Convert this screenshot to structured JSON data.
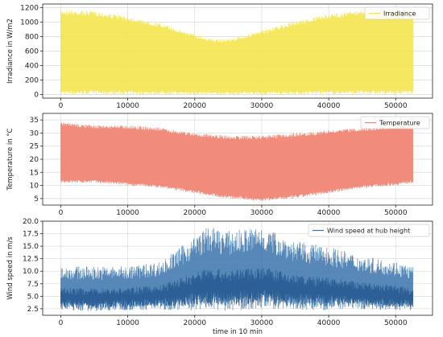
{
  "chart_data": [
    {
      "type": "line",
      "ylabel": "Irradiance in W/m2",
      "xlabel": "",
      "xlim": [
        -2700,
        55500
      ],
      "ylim": [
        -50,
        1250
      ],
      "xticks": [
        0,
        10000,
        20000,
        30000,
        40000,
        50000
      ],
      "xtick_labels": [
        "0",
        "10000",
        "20000",
        "30000",
        "40000",
        "50000"
      ],
      "yticks": [
        0,
        200,
        400,
        600,
        800,
        1000,
        1200
      ],
      "ytick_labels": [
        "0",
        "200",
        "400",
        "600",
        "800",
        "1000",
        "1200"
      ],
      "grid": true,
      "legend_position": "top-right",
      "color": "#f5e44f",
      "series": [
        {
          "name": "Irradiance",
          "x_range": [
            0,
            52560
          ],
          "envelope_x": [
            0,
            5000,
            10000,
            15000,
            20000,
            23000,
            26000,
            30000,
            35000,
            40000,
            45000,
            50000,
            52560
          ],
          "envelope_max": [
            1170,
            1150,
            1080,
            980,
            830,
            760,
            780,
            880,
            1010,
            1110,
            1170,
            1190,
            1160
          ],
          "envelope_min": [
            0,
            0,
            0,
            0,
            0,
            0,
            0,
            0,
            0,
            0,
            0,
            0,
            0
          ]
        }
      ]
    },
    {
      "type": "line",
      "ylabel": "Temperature in °C",
      "xlabel": "",
      "xlim": [
        -2700,
        55500
      ],
      "ylim": [
        2.5,
        37.5
      ],
      "xticks": [
        0,
        10000,
        20000,
        30000,
        40000,
        50000
      ],
      "xtick_labels": [
        "0",
        "10000",
        "20000",
        "30000",
        "40000",
        "50000"
      ],
      "yticks": [
        5,
        10,
        15,
        20,
        25,
        30,
        35
      ],
      "ytick_labels": [
        "5",
        "10",
        "15",
        "20",
        "25",
        "30",
        "35"
      ],
      "grid": true,
      "legend_position": "top-right",
      "color": "#f0806f",
      "series": [
        {
          "name": "Temperature",
          "x_range": [
            0,
            52560
          ],
          "envelope_x": [
            0,
            5000,
            10000,
            15000,
            20000,
            25000,
            30000,
            35000,
            40000,
            45000,
            50000,
            52560
          ],
          "envelope_max": [
            34,
            33,
            33,
            32,
            30,
            29,
            29,
            30,
            31,
            32,
            33,
            33
          ],
          "envelope_min": [
            11,
            11,
            10,
            9,
            7,
            5,
            4,
            5,
            7,
            9,
            10,
            11
          ]
        }
      ]
    },
    {
      "type": "line",
      "ylabel": "Wind speed in m/s",
      "xlabel": "time in 10 min",
      "xlim": [
        -2700,
        55500
      ],
      "ylim": [
        1.2,
        20
      ],
      "xticks": [
        0,
        10000,
        20000,
        30000,
        40000,
        50000
      ],
      "xtick_labels": [
        "0",
        "10000",
        "20000",
        "30000",
        "40000",
        "50000"
      ],
      "yticks": [
        2.5,
        5.0,
        7.5,
        10.0,
        12.5,
        15.0,
        17.5,
        20.0
      ],
      "ytick_labels": [
        "2.5",
        "5.0",
        "7.5",
        "10.0",
        "12.5",
        "15.0",
        "17.5",
        "20.0"
      ],
      "grid": true,
      "legend_position": "top-right",
      "color": "#3a73ab",
      "series": [
        {
          "name": "Wind speed at hub height",
          "x_range": [
            0,
            52560
          ],
          "envelope_x": [
            0,
            5000,
            10000,
            15000,
            20000,
            22000,
            25000,
            30000,
            35000,
            40000,
            45000,
            50000,
            52560
          ],
          "envelope_max": [
            11,
            11,
            11,
            12,
            17,
            19,
            18,
            19,
            16,
            15,
            13,
            12,
            11
          ],
          "envelope_min": [
            2.2,
            2.0,
            2.2,
            2.3,
            2.2,
            2.3,
            2.0,
            2.5,
            2.3,
            2.2,
            2.4,
            2.2,
            2.2
          ]
        }
      ]
    }
  ]
}
